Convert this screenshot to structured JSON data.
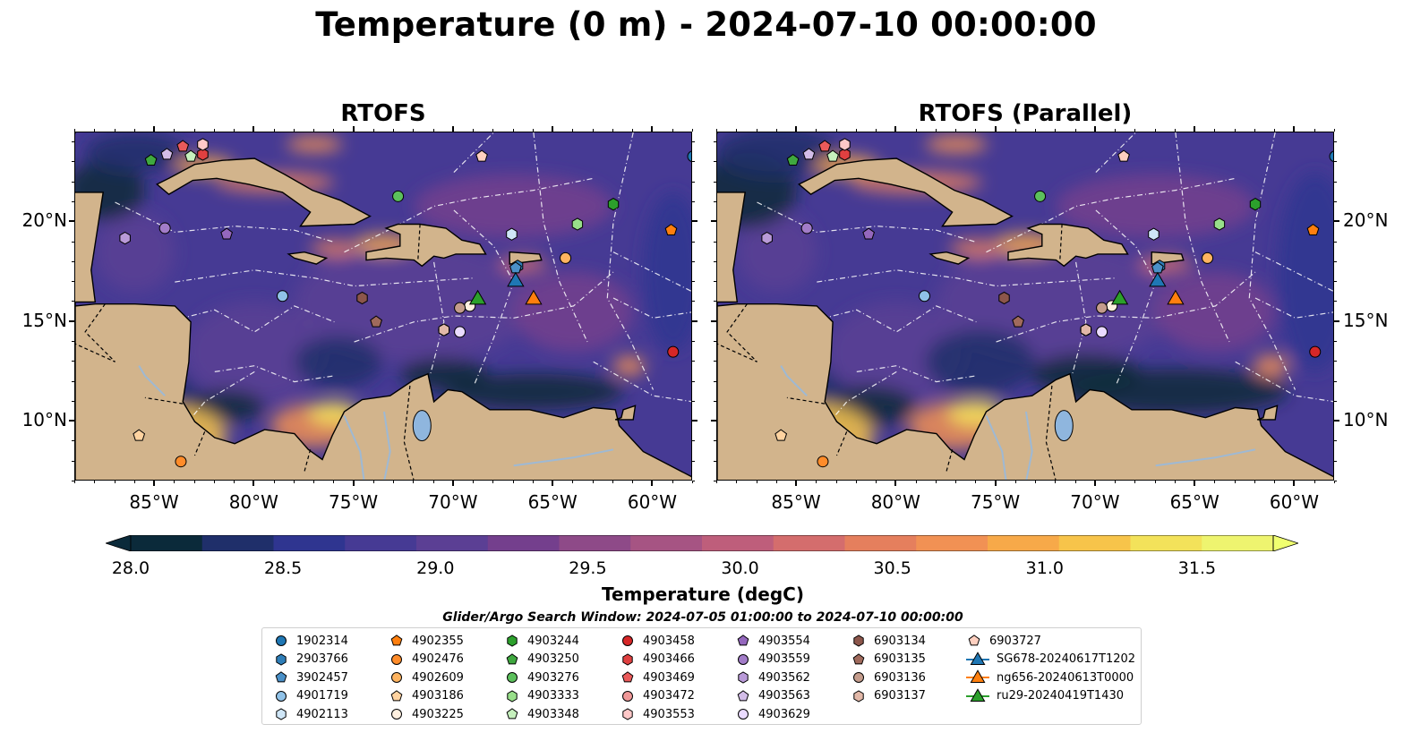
{
  "title": "Temperature (0 m) - 2024-07-10 00:00:00",
  "panels": [
    {
      "id": "left",
      "title": "RTOFS"
    },
    {
      "id": "right",
      "title": "RTOFS (Parallel)"
    }
  ],
  "chart_data": {
    "type": "heatmap",
    "map_extent": {
      "lon": [
        -89.0,
        -58.0
      ],
      "lat": [
        7.0,
        24.5
      ]
    },
    "x_ticks": [
      "85°W",
      "80°W",
      "75°W",
      "70°W",
      "65°W",
      "60°W"
    ],
    "x_tick_values": [
      -85,
      -80,
      -75,
      -70,
      -65,
      -60
    ],
    "y_ticks": [
      "20°N",
      "15°N",
      "10°N"
    ],
    "y_tick_values": [
      20,
      15,
      10
    ],
    "colorbar": {
      "label": "Temperature (degC)",
      "range": [
        28.0,
        31.75
      ],
      "ticks": [
        "28.0",
        "28.5",
        "29.0",
        "29.5",
        "30.0",
        "30.5",
        "31.0",
        "31.5"
      ],
      "tick_values": [
        28.0,
        28.5,
        29.0,
        29.5,
        30.0,
        30.5,
        31.0,
        31.5
      ],
      "extend": "both",
      "colors": [
        "#0b2a3a",
        "#1f2f6a",
        "#2f3590",
        "#463a94",
        "#5b3f94",
        "#743f8d",
        "#8e4a88",
        "#a65483",
        "#be5e7b",
        "#d46d6d",
        "#e57f5d",
        "#f19154",
        "#f7a949",
        "#f7c44a",
        "#f3e25a",
        "#eef46f"
      ]
    },
    "search_window": "Glider/Argo Search Window: 2024-07-05 01:00:00 to 2024-07-10 00:00:00",
    "platforms": [
      {
        "name": "1902314",
        "lon": -58.0,
        "lat": 23.3,
        "color": "#1f77b4",
        "marker": "circle"
      },
      {
        "name": "2903766",
        "lon": -66.8,
        "lat": 17.8,
        "color": "#2e7eb8",
        "marker": "hexagon"
      },
      {
        "name": "3902457",
        "lon": -66.9,
        "lat": 17.7,
        "color": "#4a90c8",
        "marker": "pentagon"
      },
      {
        "name": "4901719",
        "lon": -78.6,
        "lat": 16.3,
        "color": "#90c2e8",
        "marker": "circle"
      },
      {
        "name": "4902113",
        "lon": -67.1,
        "lat": 19.4,
        "color": "#cfe6f7",
        "marker": "hexagon"
      },
      {
        "name": "4902355",
        "lon": -59.1,
        "lat": 19.6,
        "color": "#ff7f0e",
        "marker": "pentagon"
      },
      {
        "name": "4902476",
        "lon": -83.7,
        "lat": 8.0,
        "color": "#ff8c2a",
        "marker": "circle"
      },
      {
        "name": "4902609",
        "lon": -64.4,
        "lat": 18.2,
        "color": "#ffb460",
        "marker": "circle"
      },
      {
        "name": "4903186",
        "lon": -85.8,
        "lat": 9.3,
        "color": "#ffd3a0",
        "marker": "pentagon"
      },
      {
        "name": "4903225",
        "lon": -69.2,
        "lat": 15.8,
        "color": "#fff0e0",
        "marker": "circle"
      },
      {
        "name": "4903244",
        "lon": -62.0,
        "lat": 20.9,
        "color": "#2ca02c",
        "marker": "hexagon"
      },
      {
        "name": "4903250",
        "lon": -85.2,
        "lat": 23.1,
        "color": "#3fa83f",
        "marker": "pentagon"
      },
      {
        "name": "4903276",
        "lon": -72.8,
        "lat": 21.3,
        "color": "#5cc05c",
        "marker": "circle"
      },
      {
        "name": "4903333",
        "lon": -63.8,
        "lat": 19.9,
        "color": "#98df8a",
        "marker": "hexagon"
      },
      {
        "name": "4903348",
        "lon": -83.2,
        "lat": 23.3,
        "color": "#c6f0bd",
        "marker": "pentagon"
      },
      {
        "name": "4903458",
        "lon": -59.0,
        "lat": 13.5,
        "color": "#d62728",
        "marker": "circle"
      },
      {
        "name": "4903466",
        "lon": -82.6,
        "lat": 23.4,
        "color": "#e04040",
        "marker": "hexagon"
      },
      {
        "name": "4903469",
        "lon": -83.6,
        "lat": 23.8,
        "color": "#ea5a5a",
        "marker": "pentagon"
      },
      {
        "name": "4903472",
        "lon": -70.5,
        "lat": 14.6,
        "color": "#f09898",
        "marker": "circle"
      },
      {
        "name": "4903553",
        "lon": -82.6,
        "lat": 23.9,
        "color": "#ffc8c8",
        "marker": "hexagon"
      },
      {
        "name": "4903554",
        "lon": -81.4,
        "lat": 19.4,
        "color": "#9467bd",
        "marker": "pentagon"
      },
      {
        "name": "4903559",
        "lon": -84.5,
        "lat": 19.7,
        "color": "#a27cc8",
        "marker": "circle"
      },
      {
        "name": "4903562",
        "lon": -86.5,
        "lat": 19.2,
        "color": "#b99ad8",
        "marker": "hexagon"
      },
      {
        "name": "4903563",
        "lon": -84.4,
        "lat": 23.4,
        "color": "#d3bde8",
        "marker": "pentagon"
      },
      {
        "name": "4903629",
        "lon": -69.7,
        "lat": 14.5,
        "color": "#eadbff",
        "marker": "circle"
      },
      {
        "name": "6903134",
        "lon": -74.6,
        "lat": 16.2,
        "color": "#8c564b",
        "marker": "hexagon"
      },
      {
        "name": "6903135",
        "lon": -73.9,
        "lat": 15.0,
        "color": "#a06a5c",
        "marker": "pentagon"
      },
      {
        "name": "6903136",
        "lon": -69.7,
        "lat": 15.7,
        "color": "#c49c8c",
        "marker": "circle"
      },
      {
        "name": "6903137",
        "lon": -70.5,
        "lat": 14.6,
        "color": "#e2b8a8",
        "marker": "hexagon"
      },
      {
        "name": "6903727",
        "lon": -68.6,
        "lat": 23.3,
        "color": "#ffd0c0",
        "marker": "pentagon"
      },
      {
        "name": "SG678-20240617T1202",
        "lon": -66.9,
        "lat": 17.1,
        "color": "#1f77b4",
        "marker": "triangle"
      },
      {
        "name": "ng656-20240613T0000",
        "lon": -66.0,
        "lat": 16.2,
        "color": "#ff7f0e",
        "marker": "triangle"
      },
      {
        "name": "ru29-20240419T1430",
        "lon": -68.8,
        "lat": 16.2,
        "color": "#2ca02c",
        "marker": "triangle"
      }
    ]
  }
}
